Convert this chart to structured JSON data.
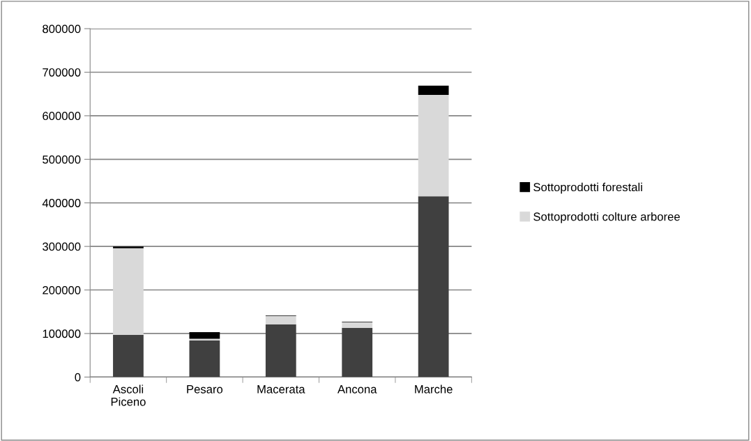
{
  "chart_data": {
    "type": "bar",
    "stacked": true,
    "categories": [
      "Ascoli\nPiceno",
      "Pesaro",
      "Macerata",
      "Ancona",
      "Marche"
    ],
    "series": [
      {
        "color": "#404040",
        "values": [
          97000,
          84000,
          121000,
          113000,
          415000
        ]
      },
      {
        "name": "Sottoprodotti colture arboree",
        "color": "#d9d9d9",
        "values": [
          199000,
          4000,
          19500,
          13000,
          233000
        ]
      },
      {
        "name": "Sottoprodotti forestali",
        "color": "#000000",
        "values": [
          4000,
          15000,
          1000,
          1000,
          21000
        ]
      }
    ],
    "ylim": [
      0,
      800000
    ],
    "yticks": [
      0,
      100000,
      200000,
      300000,
      400000,
      500000,
      600000,
      700000,
      800000
    ],
    "grid": "y",
    "legend": "right"
  }
}
